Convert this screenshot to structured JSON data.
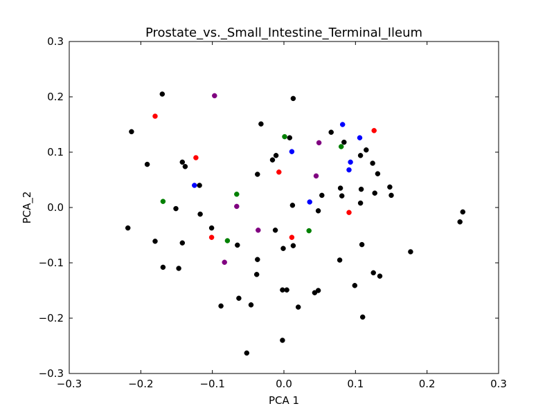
{
  "chart_data": {
    "type": "scatter",
    "title": "Prostate_vs._Small_Intestine_Terminal_Ileum",
    "xlabel": "PCA 1",
    "ylabel": "PCA_2",
    "xlim": [
      -0.3,
      0.3
    ],
    "ylim": [
      -0.3,
      0.3
    ],
    "xticks": [
      -0.3,
      -0.2,
      -0.1,
      0.0,
      0.1,
      0.2,
      0.3
    ],
    "yticks": [
      -0.3,
      -0.2,
      -0.1,
      0.0,
      0.1,
      0.2,
      0.3
    ],
    "xtick_labels": [
      "−0.3",
      "−0.2",
      "−0.1",
      "0.0",
      "0.1",
      "0.2",
      "0.3"
    ],
    "ytick_labels": [
      "−0.3",
      "−0.2",
      "−0.1",
      "0.0",
      "0.1",
      "0.2",
      "0.3"
    ],
    "grid": false,
    "legend": "none",
    "series": [
      {
        "color": "#000000",
        "points": [
          [
            -0.17,
            0.205
          ],
          [
            -0.213,
            0.137
          ],
          [
            -0.191,
            0.078
          ],
          [
            -0.142,
            0.082
          ],
          [
            -0.138,
            0.074
          ],
          [
            -0.118,
            0.04
          ],
          [
            -0.151,
            -0.002
          ],
          [
            -0.117,
            -0.012
          ],
          [
            -0.218,
            -0.037
          ],
          [
            -0.101,
            -0.037
          ],
          [
            -0.18,
            -0.061
          ],
          [
            -0.142,
            -0.064
          ],
          [
            -0.065,
            -0.068
          ],
          [
            -0.169,
            -0.108
          ],
          [
            -0.147,
            -0.11
          ],
          [
            -0.037,
            -0.094
          ],
          [
            -0.038,
            -0.121
          ],
          [
            -0.088,
            -0.178
          ],
          [
            -0.063,
            -0.164
          ],
          [
            -0.046,
            -0.176
          ],
          [
            -0.052,
            -0.263
          ],
          [
            -0.032,
            0.151
          ],
          [
            0.013,
            0.197
          ],
          [
            0.008,
            0.126
          ],
          [
            -0.016,
            0.086
          ],
          [
            -0.011,
            0.094
          ],
          [
            -0.037,
            0.06
          ],
          [
            0.066,
            0.136
          ],
          [
            0.084,
            0.118
          ],
          [
            0.107,
            0.094
          ],
          [
            0.115,
            0.104
          ],
          [
            0.124,
            0.08
          ],
          [
            0.131,
            0.061
          ],
          [
            0.148,
            0.037
          ],
          [
            0.127,
            0.026
          ],
          [
            0.15,
            0.022
          ],
          [
            0.053,
            0.022
          ],
          [
            0.079,
            0.035
          ],
          [
            0.081,
            0.021
          ],
          [
            0.108,
            0.033
          ],
          [
            0.107,
            0.008
          ],
          [
            0.048,
            -0.006
          ],
          [
            0.012,
            0.004
          ],
          [
            -0.012,
            -0.041
          ],
          [
            0.013,
            -0.069
          ],
          [
            -0.001,
            -0.074
          ],
          [
            0.109,
            -0.067
          ],
          [
            0.078,
            -0.095
          ],
          [
            0.177,
            -0.08
          ],
          [
            0.125,
            -0.118
          ],
          [
            0.134,
            -0.124
          ],
          [
            0.099,
            -0.141
          ],
          [
            0.048,
            -0.15
          ],
          [
            0.043,
            -0.154
          ],
          [
            -0.002,
            -0.149
          ],
          [
            0.004,
            -0.149
          ],
          [
            0.02,
            -0.18
          ],
          [
            0.11,
            -0.198
          ],
          [
            -0.002,
            -0.24
          ],
          [
            0.25,
            -0.008
          ],
          [
            0.246,
            -0.026
          ]
        ]
      },
      {
        "color": "#ff0000",
        "points": [
          [
            -0.18,
            0.165
          ],
          [
            -0.123,
            0.09
          ],
          [
            -0.007,
            0.064
          ],
          [
            0.126,
            0.139
          ],
          [
            0.091,
            -0.009
          ],
          [
            -0.101,
            -0.054
          ],
          [
            0.011,
            -0.054
          ]
        ]
      },
      {
        "color": "#0000ff",
        "points": [
          [
            -0.125,
            0.04
          ],
          [
            0.082,
            0.15
          ],
          [
            0.106,
            0.126
          ],
          [
            0.011,
            0.101
          ],
          [
            0.093,
            0.082
          ],
          [
            0.091,
            0.068
          ],
          [
            0.036,
            0.01
          ]
        ]
      },
      {
        "color": "#008000",
        "points": [
          [
            -0.169,
            0.011
          ],
          [
            -0.066,
            0.024
          ],
          [
            0.001,
            0.128
          ],
          [
            0.08,
            0.11
          ],
          [
            -0.079,
            -0.06
          ],
          [
            0.035,
            -0.042
          ]
        ]
      },
      {
        "color": "#800080",
        "points": [
          [
            -0.097,
            0.202
          ],
          [
            0.049,
            0.117
          ],
          [
            0.045,
            0.057
          ],
          [
            -0.066,
            0.002
          ],
          [
            -0.036,
            -0.041
          ],
          [
            -0.083,
            -0.099
          ]
        ]
      }
    ]
  }
}
